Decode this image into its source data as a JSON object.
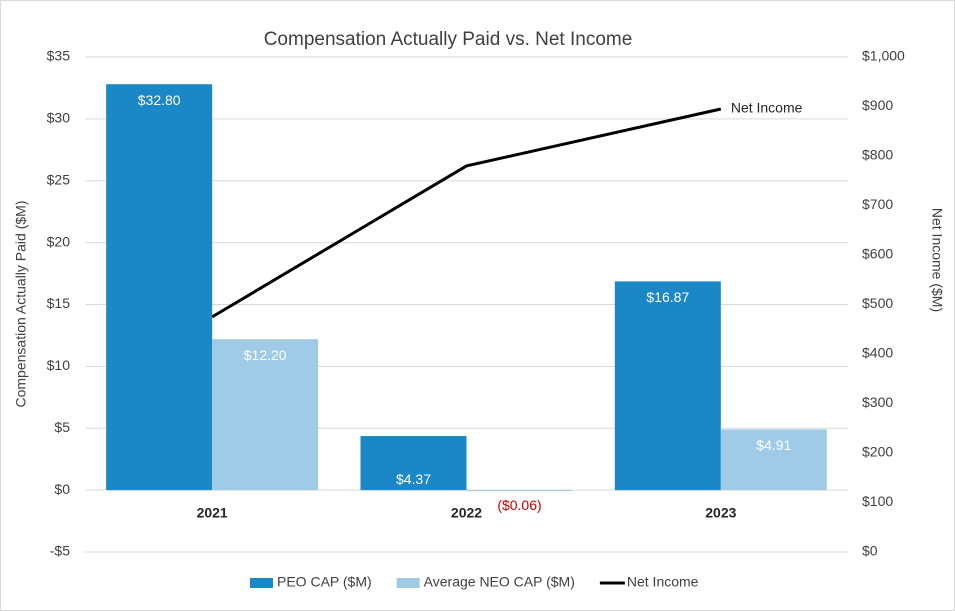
{
  "chart_data": {
    "type": "bar",
    "title": "Compensation Actually Paid vs. Net Income",
    "categories": [
      "2021",
      "2022",
      "2023"
    ],
    "series": [
      {
        "name": "PEO CAP ($M)",
        "color": "#1a87c6",
        "values": [
          32.8,
          4.37,
          16.87
        ],
        "value_labels": [
          "$32.80",
          "$4.37",
          "$16.87"
        ]
      },
      {
        "name": "Average NEO CAP ($M)",
        "color": "#9fcbe6",
        "values": [
          12.2,
          -0.06,
          4.91
        ],
        "value_labels": [
          "$12.20",
          "($0.06)",
          "$4.91"
        ]
      },
      {
        "name": "Net Income",
        "color": "#000000",
        "type": "line",
        "axis": "y2",
        "values": [
          475,
          780,
          895
        ]
      }
    ],
    "ylabel": "Compensation Actually Paid ($M)",
    "y2label": "Net Income ($M)",
    "ylim": [
      -5,
      35
    ],
    "yticks": [
      {
        "value": -5,
        "label": "-$5"
      },
      {
        "value": 0,
        "label": "$0"
      },
      {
        "value": 5,
        "label": "$5"
      },
      {
        "value": 10,
        "label": "$10"
      },
      {
        "value": 15,
        "label": "$15"
      },
      {
        "value": 20,
        "label": "$20"
      },
      {
        "value": 25,
        "label": "$25"
      },
      {
        "value": 30,
        "label": "$30"
      },
      {
        "value": 35,
        "label": "$35"
      }
    ],
    "y2lim": [
      0,
      1000
    ],
    "y2ticks": [
      {
        "value": 0,
        "label": "$0"
      },
      {
        "value": 100,
        "label": "$100"
      },
      {
        "value": 200,
        "label": "$200"
      },
      {
        "value": 300,
        "label": "$300"
      },
      {
        "value": 400,
        "label": "$400"
      },
      {
        "value": 500,
        "label": "$500"
      },
      {
        "value": 600,
        "label": "$600"
      },
      {
        "value": 700,
        "label": "$700"
      },
      {
        "value": 800,
        "label": "$800"
      },
      {
        "value": 900,
        "label": "$900"
      },
      {
        "value": 1000,
        "label": "$1,000"
      }
    ],
    "grid": true,
    "negative_label_color": "#c00000",
    "legend": "bottom"
  }
}
